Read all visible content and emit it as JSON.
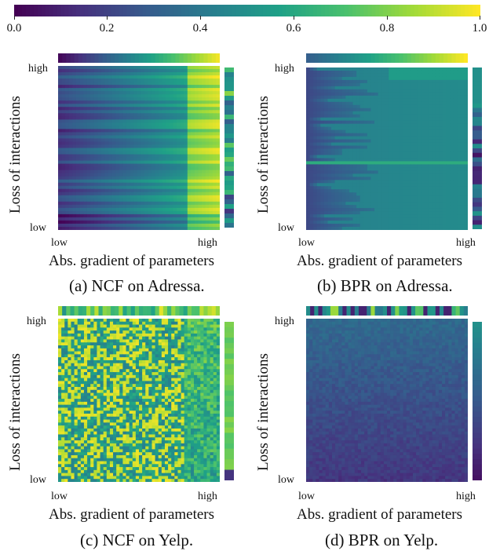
{
  "colorbar": {
    "ticks": [
      "0.0",
      "0.2",
      "0.4",
      "0.6",
      "0.8",
      "1.0"
    ],
    "colormap": [
      "#440154",
      "#46327e",
      "#365c8d",
      "#277f8e",
      "#1fa187",
      "#4ac16d",
      "#a0da39",
      "#fde725"
    ]
  },
  "chart_data": [
    {
      "type": "heatmap",
      "caption": "(a) NCF on Adressa.",
      "xlabel": "Abs. gradient of parameters",
      "ylabel": "Loss of interactions",
      "x_tick_labels": [
        "low",
        "high"
      ],
      "y_tick_labels": [
        "low",
        "high"
      ],
      "pattern": "gradient",
      "strength": 0.85,
      "top_marginal": "left-to-right increasing, dark purple to yellow",
      "right_marginal": "alternating teal/green with darker bottom rows"
    },
    {
      "type": "heatmap",
      "caption": "(b) BPR on Adressa.",
      "xlabel": "Abs. gradient of parameters",
      "ylabel": "Loss of interactions",
      "x_tick_labels": [
        "low",
        "high"
      ],
      "y_tick_labels": [
        "low",
        "high"
      ],
      "pattern": "teal-rows",
      "strength": 0.5,
      "top_marginal": "left-to-right increasing, blue to yellow",
      "right_marginal": "alternating dark purple/teal rows"
    },
    {
      "type": "heatmap",
      "caption": "(c) NCF on Yelp.",
      "xlabel": "Abs. gradient of parameters",
      "ylabel": "Loss of interactions",
      "x_tick_labels": [
        "low",
        "high"
      ],
      "y_tick_labels": [
        "low",
        "high"
      ],
      "pattern": "noisy",
      "strength": 0.7,
      "top_marginal": "mixed teal/yellow, brighter on the right",
      "right_marginal": "mostly green/yellow"
    },
    {
      "type": "heatmap",
      "caption": "(d) BPR on Yelp.",
      "xlabel": "Abs. gradient of parameters",
      "ylabel": "Loss of interactions",
      "x_tick_labels": [
        "low",
        "high"
      ],
      "y_tick_labels": [
        "low",
        "high"
      ],
      "pattern": "dark-noise",
      "strength": 0.3,
      "top_marginal": "mixed dark/teal with yellow-green patches",
      "right_marginal": "teal on top, darker purple toward bottom"
    }
  ]
}
